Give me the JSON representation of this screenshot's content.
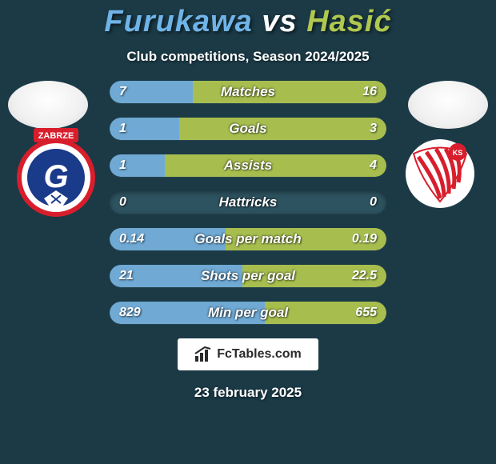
{
  "background_color": "#1b3a46",
  "title": {
    "player1": "Furukawa",
    "vs": "vs",
    "player2": "Hasić",
    "player1_color": "#6fb4e8",
    "vs_color": "#ffffff",
    "player2_color": "#b0c84f",
    "fontsize": 38
  },
  "subtitle": "Club competitions, Season 2024/2025",
  "clubs": {
    "left": {
      "bg": "#ffffff",
      "ring_colors": [
        "#d81e2c",
        "#1a3a8a",
        "#ffffff"
      ],
      "letter": "G",
      "letter_color": "#ffffff",
      "top_text": "ZABRZE",
      "top_bg": "#d81e2c"
    },
    "right": {
      "bg": "#ffffff",
      "stripe_color": "#d81e2c",
      "small_text": "KS"
    }
  },
  "stats": {
    "track_bg": "#2d5360",
    "left_fill_color": "#6fa9d4",
    "right_fill_color": "#a7be4f",
    "label_color": "#ffffff",
    "value_color": "#ffffff",
    "label_fontsize": 17,
    "value_fontsize": 16,
    "rows": [
      {
        "label": "Matches",
        "left": "7",
        "right": "16",
        "left_pct": 30,
        "right_pct": 70
      },
      {
        "label": "Goals",
        "left": "1",
        "right": "3",
        "left_pct": 25,
        "right_pct": 75
      },
      {
        "label": "Assists",
        "left": "1",
        "right": "4",
        "left_pct": 20,
        "right_pct": 80
      },
      {
        "label": "Hattricks",
        "left": "0",
        "right": "0",
        "left_pct": 0,
        "right_pct": 0
      },
      {
        "label": "Goals per match",
        "left": "0.14",
        "right": "0.19",
        "left_pct": 42,
        "right_pct": 58
      },
      {
        "label": "Shots per goal",
        "left": "21",
        "right": "22.5",
        "left_pct": 48,
        "right_pct": 52
      },
      {
        "label": "Min per goal",
        "left": "829",
        "right": "655",
        "left_pct": 56,
        "right_pct": 44
      }
    ]
  },
  "footer": {
    "brand": "FcTables.com",
    "date": "23 february 2025"
  }
}
